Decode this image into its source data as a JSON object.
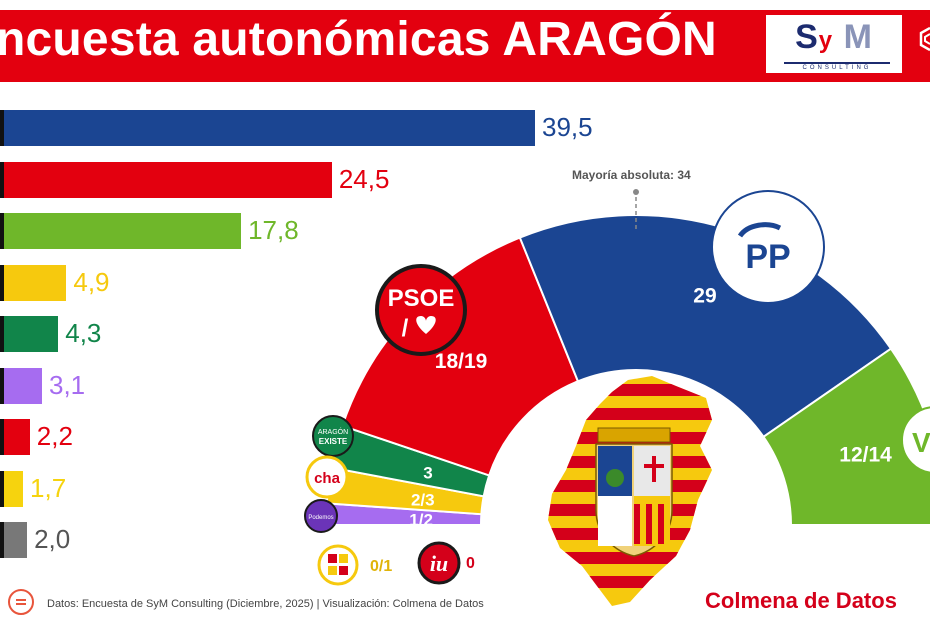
{
  "header": {
    "title": "ncuesta autonómicas ARAGÓN",
    "logo_main": "SyM",
    "logo_sub": "CONSULTING"
  },
  "chart_data": [
    {
      "type": "bar",
      "orientation": "horizontal",
      "categories": [
        "",
        "",
        "",
        "",
        "",
        "",
        "",
        "",
        ""
      ],
      "values": [
        39.5,
        24.5,
        17.8,
        4.9,
        4.3,
        3.1,
        2.2,
        1.7,
        2.0
      ],
      "value_labels": [
        "39,5",
        "24,5",
        "17,8",
        "4,9",
        "4,3",
        "3,1",
        "2,2",
        "1,7",
        "2,0"
      ],
      "colors": [
        "#1b4592",
        "#e3000f",
        "#6fb72a",
        "#f6c90e",
        "#11854a",
        "#a66cf0",
        "#e3000f",
        "#f6d30e",
        "#787878"
      ],
      "xlim": [
        0,
        40
      ],
      "grid": false
    },
    {
      "type": "pie",
      "variant": "hemicycle",
      "title": "",
      "majority_label": "Mayoría absoluta: 34",
      "segments": [
        {
          "name": "Podemos",
          "label": "1/2",
          "value": 1.5,
          "color": "#a66cf0"
        },
        {
          "name": "CHA",
          "label": "2/3",
          "value": 2.5,
          "color": "#f6c90e"
        },
        {
          "name": "Aragón Existe",
          "label": "3",
          "value": 3,
          "color": "#11854a"
        },
        {
          "name": "PSOE",
          "label": "18/19",
          "value": 18.5,
          "color": "#e3000f"
        },
        {
          "name": "PP",
          "label": "29",
          "value": 29,
          "color": "#1b4592"
        },
        {
          "name": "VOX",
          "label": "12/14",
          "value": 13,
          "color": "#6fb72a"
        }
      ],
      "extra_labels": [
        {
          "name": "PAR",
          "label": "0/1",
          "color": "#f6c90e"
        },
        {
          "name": "IU",
          "label": "0",
          "color": "#d4001a"
        }
      ]
    }
  ],
  "party_logos": {
    "psoe": "PSOE",
    "pp": "PP",
    "vox": "VO",
    "aragon_existe_line1": "ARAGÓN",
    "aragon_existe_line2": "EXISTE",
    "cha": "cha",
    "podemos": "Podemos",
    "par": "PAR",
    "iu": "iu"
  },
  "footer": {
    "source": "Datos: Encuesta de SyM Consulting (Diciembre, 2025) | Visualización: Colmena de Datos",
    "brand": "Colmena de Datos"
  }
}
